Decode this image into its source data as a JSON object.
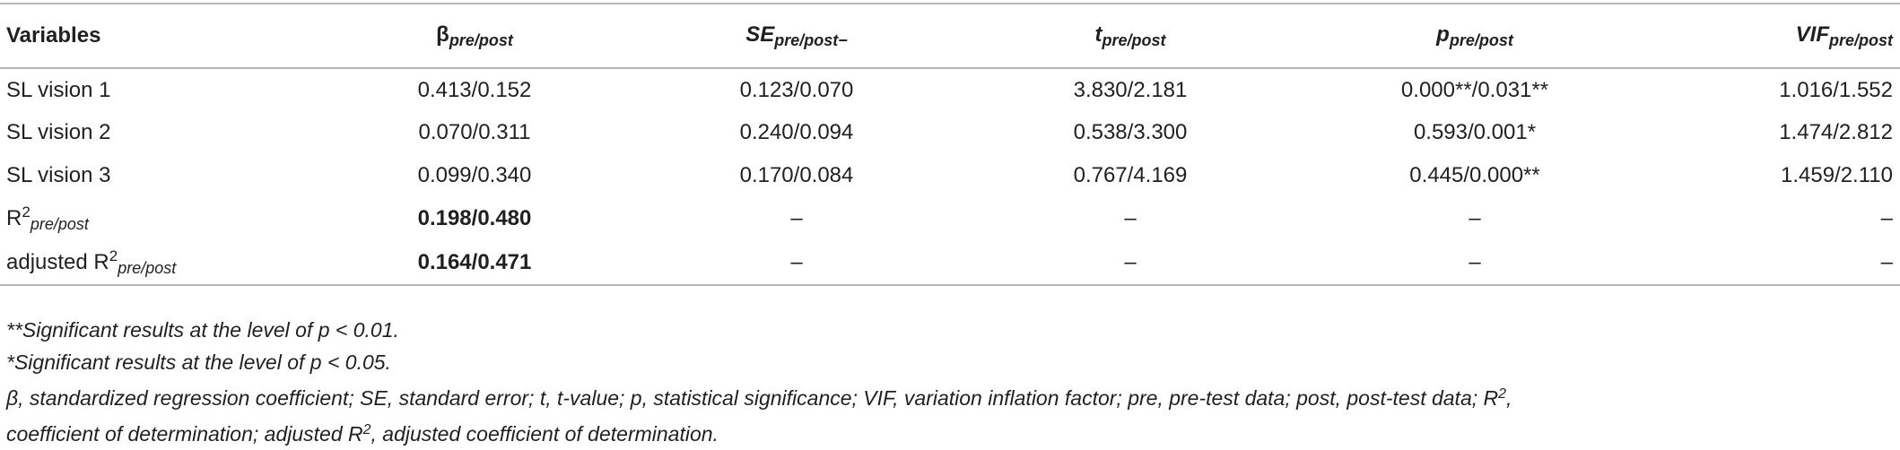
{
  "table": {
    "headers": [
      "Variables",
      {
        "main": "β",
        "sub": "pre/post"
      },
      {
        "main": "SE",
        "sub": "pre/post−"
      },
      {
        "main": "t",
        "sub": "pre/post"
      },
      {
        "main": "p",
        "sub": "pre/post"
      },
      {
        "main": "VIF",
        "sub": "pre/post"
      }
    ],
    "rows": [
      {
        "label": "SL vision 1",
        "cells": [
          "0.413/0.152",
          "0.123/0.070",
          "3.830/2.181",
          "0.000**/0.031**",
          "1.016/1.552"
        ]
      },
      {
        "label": "SL vision 2",
        "cells": [
          "0.070/0.311",
          "0.240/0.094",
          "0.538/3.300",
          "0.593/0.001*",
          "1.474/2.812"
        ]
      },
      {
        "label": "SL vision 3",
        "cells": [
          "0.099/0.340",
          "0.170/0.084",
          "0.767/4.169",
          "0.445/0.000**",
          "1.459/2.110"
        ]
      },
      {
        "label": {
          "main": "R",
          "sup": "2",
          "sub": "pre/post"
        },
        "cells": [
          "0.198/0.480",
          "–",
          "–",
          "–",
          "–"
        ]
      },
      {
        "label": {
          "main": "adjusted R",
          "sup": "2",
          "sub": "pre/post"
        },
        "cells": [
          "0.164/0.471",
          "–",
          "–",
          "–",
          "–"
        ]
      }
    ]
  },
  "footnotes": [
    "**Significant results at the level of p < 0.01.",
    "*Significant results at the level of p < 0.05.",
    {
      "parts": [
        "β, standardized regression coefficient; SE, standard error; t, t-value; p, statistical significance; VIF, variation inflation factor; pre, pre-test data; post, post-test data; R",
        "2",
        ","
      ]
    },
    {
      "parts": [
        "coefficient of determination; adjusted R",
        "2",
        ", adjusted coefficient of determination."
      ]
    }
  ]
}
